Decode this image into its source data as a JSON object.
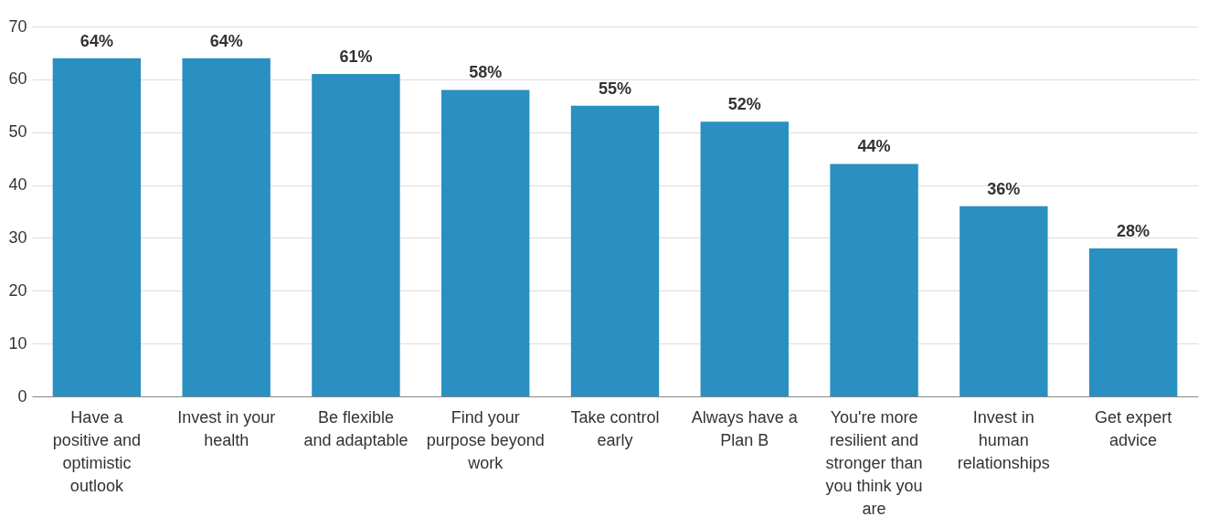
{
  "chart_data": {
    "type": "bar",
    "categories": [
      "Have a positive and optimistic outlook",
      "Invest in your health",
      "Be flexible and adaptable",
      "Find your purpose beyond work",
      "Take control early",
      "Always have a Plan B",
      "You're more resilient and stronger than you think you are",
      "Invest in human relationships",
      "Get expert advice"
    ],
    "values": [
      64,
      64,
      61,
      58,
      55,
      52,
      44,
      36,
      28
    ],
    "value_labels": [
      "64%",
      "64%",
      "61%",
      "58%",
      "55%",
      "52%",
      "44%",
      "36%",
      "28%"
    ],
    "color": "#2a8fc1",
    "ylim": [
      0,
      70
    ],
    "yticks": [
      0,
      10,
      20,
      30,
      40,
      50,
      60,
      70
    ],
    "grid": "y"
  }
}
